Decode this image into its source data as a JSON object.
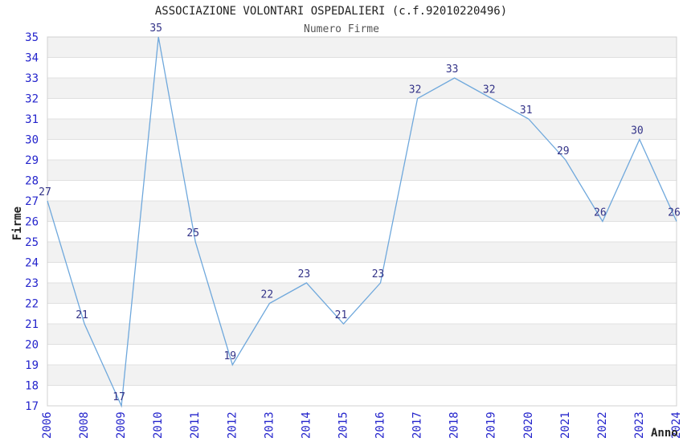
{
  "title": "ASSOCIAZIONE VOLONTARI OSPEDALIERI (c.f.92010220496)",
  "subtitle": "Numero Firme",
  "chart_data": {
    "type": "line",
    "title": "ASSOCIAZIONE VOLONTARI OSPEDALIERI (c.f.92010220496)",
    "subtitle": "Numero Firme",
    "categories": [
      "2006",
      "2008",
      "2009",
      "2010",
      "2011",
      "2012",
      "2013",
      "2014",
      "2015",
      "2016",
      "2017",
      "2018",
      "2019",
      "2020",
      "2021",
      "2022",
      "2023",
      "2024"
    ],
    "values": [
      27,
      21,
      17,
      35,
      25,
      19,
      22,
      23,
      21,
      23,
      32,
      33,
      32,
      31,
      29,
      26,
      30,
      26
    ],
    "xlabel": "Anno",
    "ylabel": "Firme",
    "ylim": [
      17,
      35
    ],
    "y_tick_step": 1,
    "grid": "horizontal-bands-alternating",
    "legend": "none",
    "data_labels_visible": true,
    "colors": {
      "line": "#6fa8dc",
      "tick_label": "#2424cc",
      "data_label": "#333388",
      "band": "#f2f2f2",
      "grid_line": "#e0e0e0",
      "plot_border": "#d0d0d0",
      "title": "#222222",
      "subtitle": "#555555",
      "axis_title": "#222222",
      "background": "#ffffff"
    }
  }
}
